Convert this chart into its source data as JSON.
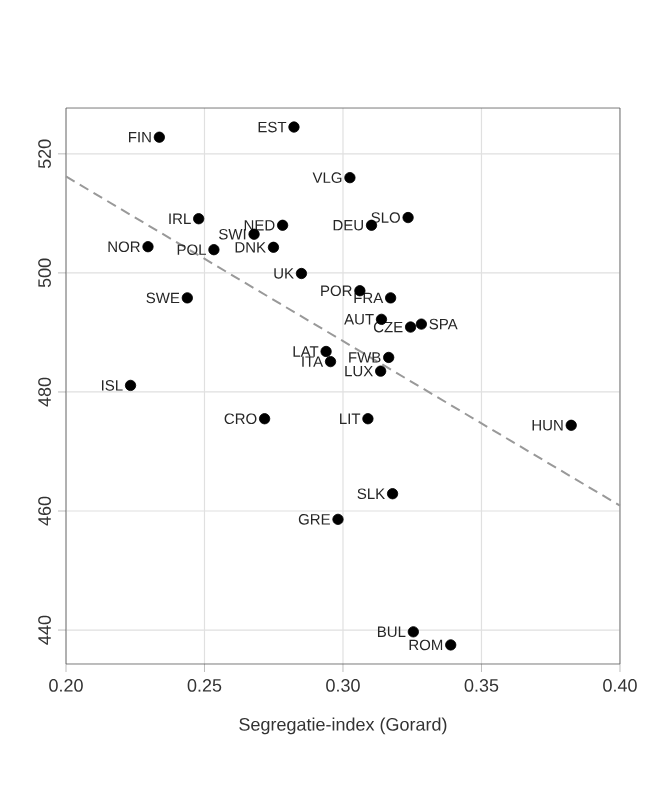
{
  "chart_data": {
    "type": "scatter",
    "xlabel": "Segregatie-index (Gorard)",
    "xlim": [
      0.2,
      0.4
    ],
    "ylim": [
      434.3,
      527.7
    ],
    "xticks": [
      {
        "value": 0.2,
        "label": "0.20"
      },
      {
        "value": 0.25,
        "label": "0.25"
      },
      {
        "value": 0.3,
        "label": "0.30"
      },
      {
        "value": 0.35,
        "label": "0.35"
      },
      {
        "value": 0.4,
        "label": "0.40"
      }
    ],
    "yticks": [
      440,
      460,
      480,
      500,
      520
    ],
    "grid": true,
    "marker": "circle",
    "series": [
      {
        "color": "#000000",
        "x": [
          0.2337,
          0.2823,
          0.3025,
          0.2479,
          0.2782,
          0.2679,
          0.2296,
          0.2534,
          0.2749,
          0.3103,
          0.3235,
          0.285,
          0.3061,
          0.3172,
          0.2438,
          0.3139,
          0.3244,
          0.3283,
          0.2939,
          0.2955,
          0.3165,
          0.3136,
          0.2233,
          0.2717,
          0.309,
          0.3824,
          0.3179,
          0.2982,
          0.3254,
          0.3389
        ],
        "values": [
          522.8,
          524.5,
          516.0,
          509.1,
          508.0,
          506.5,
          504.4,
          503.9,
          504.3,
          508.0,
          509.3,
          499.9,
          497.0,
          495.8,
          495.8,
          492.2,
          490.9,
          491.4,
          486.8,
          485.1,
          485.8,
          483.5,
          481.1,
          475.5,
          475.5,
          474.4,
          462.9,
          458.6,
          439.7,
          437.5
        ]
      },
      {
        "type": "line",
        "color": "#999999",
        "line_style": "dashed",
        "marker": "none",
        "x": [
          0.2,
          0.4
        ],
        "values": [
          516.2,
          460.9
        ]
      }
    ],
    "annotations": [
      {
        "text": "FIN",
        "x": 0.2337,
        "y": 522.8
      },
      {
        "text": "EST",
        "x": 0.2823,
        "y": 524.5
      },
      {
        "text": "VLG",
        "x": 0.3025,
        "y": 516.0
      },
      {
        "text": "IRL",
        "x": 0.2479,
        "y": 509.1
      },
      {
        "text": "NED",
        "x": 0.2782,
        "y": 508.0
      },
      {
        "text": "SWI",
        "x": 0.2679,
        "y": 506.5
      },
      {
        "text": "NOR",
        "x": 0.2296,
        "y": 504.4
      },
      {
        "text": "POL",
        "x": 0.2534,
        "y": 503.9
      },
      {
        "text": "DNK",
        "x": 0.2749,
        "y": 504.3
      },
      {
        "text": "DEU",
        "x": 0.3103,
        "y": 508.0
      },
      {
        "text": "SLO",
        "x": 0.3235,
        "y": 509.3
      },
      {
        "text": "UK",
        "x": 0.285,
        "y": 499.9
      },
      {
        "text": "POR",
        "x": 0.3061,
        "y": 497.0
      },
      {
        "text": "FRA",
        "x": 0.3172,
        "y": 495.8
      },
      {
        "text": "SWE",
        "x": 0.2438,
        "y": 495.8
      },
      {
        "text": "AUT",
        "x": 0.3139,
        "y": 492.2
      },
      {
        "text": "CZE",
        "x": 0.3244,
        "y": 490.9
      },
      {
        "text": "SPA",
        "x": 0.3283,
        "y": 491.4
      },
      {
        "text": "LAT",
        "x": 0.2939,
        "y": 486.8
      },
      {
        "text": "ITA",
        "x": 0.2955,
        "y": 485.1
      },
      {
        "text": "FWB",
        "x": 0.3165,
        "y": 485.8
      },
      {
        "text": "LUX",
        "x": 0.3136,
        "y": 483.5
      },
      {
        "text": "ISL",
        "x": 0.2233,
        "y": 481.1
      },
      {
        "text": "CRO",
        "x": 0.2717,
        "y": 475.5
      },
      {
        "text": "LIT",
        "x": 0.309,
        "y": 475.5
      },
      {
        "text": "HUN",
        "x": 0.3824,
        "y": 474.4
      },
      {
        "text": "SLK",
        "x": 0.3179,
        "y": 462.9
      },
      {
        "text": "GRE",
        "x": 0.2982,
        "y": 458.6
      },
      {
        "text": "BUL",
        "x": 0.3254,
        "y": 439.7
      },
      {
        "text": "ROM",
        "x": 0.3389,
        "y": 437.5
      }
    ]
  }
}
